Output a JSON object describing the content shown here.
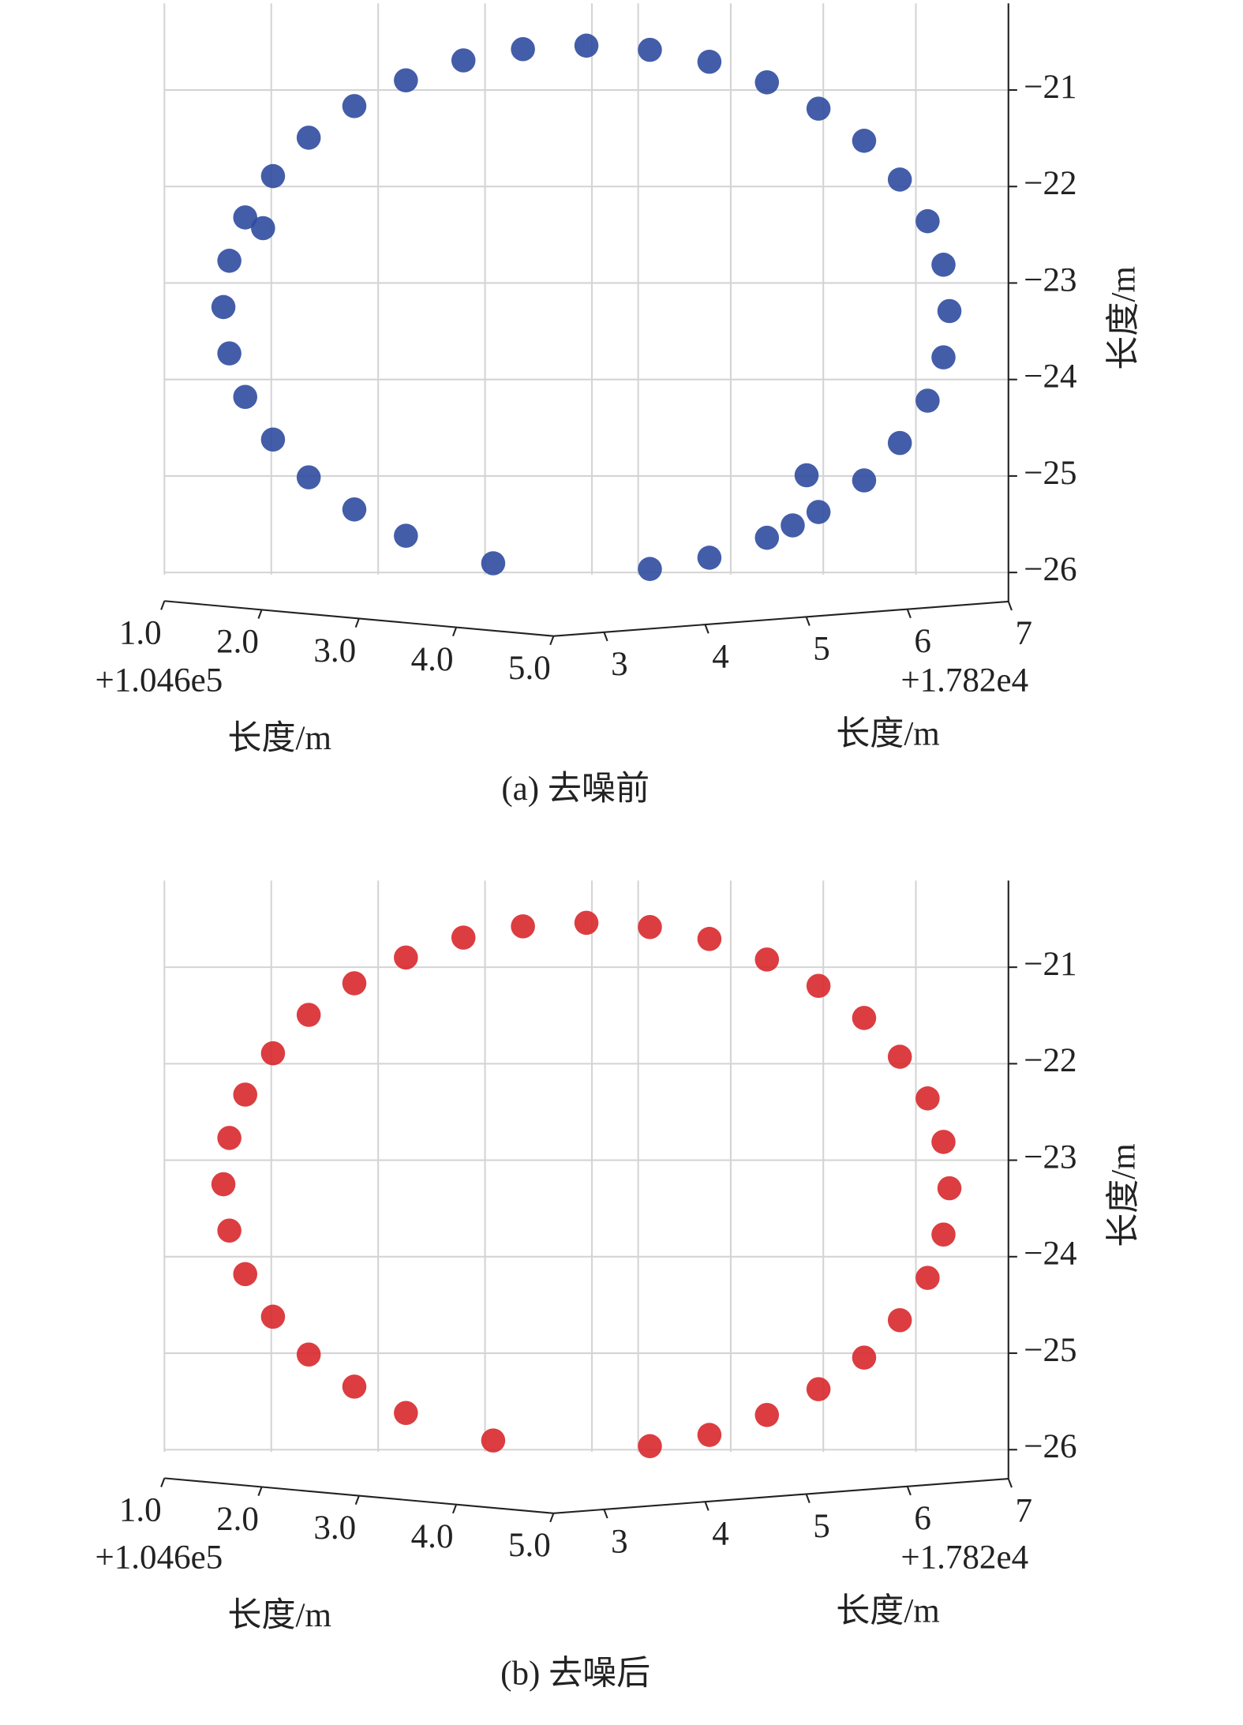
{
  "chart_data": [
    {
      "type": "scatter3d",
      "caption": "(a) 去噪前",
      "color": "#2f4ba0",
      "grid": true,
      "xlabel": "长度/m",
      "ylabel": "长度/m",
      "zlabel": "长度/m",
      "x_offset": "+1.046e5",
      "y_offset": "+1.782e4",
      "xlim": [
        1,
        5
      ],
      "ylim": [
        2.5,
        7
      ],
      "zlim": [
        -26.3,
        -20.1
      ],
      "xticks": [
        {
          "value": 1,
          "label": "1.0"
        },
        {
          "value": 2,
          "label": "2.0"
        },
        {
          "value": 3,
          "label": "3.0"
        },
        {
          "value": 4,
          "label": "4.0"
        },
        {
          "value": 5,
          "label": "5.0"
        }
      ],
      "yticks": [
        3,
        4,
        5,
        6,
        7
      ],
      "zticks": [
        {
          "value": -21,
          "label": "−21"
        },
        {
          "value": -22,
          "label": "−22"
        },
        {
          "value": -23,
          "label": "−23"
        },
        {
          "value": -24,
          "label": "−24"
        },
        {
          "value": -25,
          "label": "−25"
        },
        {
          "value": -26,
          "label": "−26"
        }
      ],
      "x": [
        4.83,
        4.8,
        4.72,
        4.58,
        4.4,
        4.17,
        3.91,
        3.62,
        3.32,
        3.0,
        2.68,
        2.38,
        2.09,
        1.83,
        1.6,
        1.42,
        1.28,
        1.2,
        1.17,
        1.2,
        1.28,
        1.42,
        1.6,
        1.83,
        2.09,
        2.53,
        3.32,
        3.62,
        3.91,
        4.17,
        4.4,
        4.58,
        4.72,
        4.8,
        1.37,
        4.11,
        4.04
      ],
      "y": [
        6.58,
        6.55,
        6.47,
        6.33,
        6.15,
        5.92,
        5.66,
        5.37,
        5.07,
        4.75,
        4.43,
        4.13,
        3.84,
        3.58,
        3.35,
        3.17,
        3.03,
        2.95,
        2.92,
        2.95,
        3.03,
        3.17,
        3.35,
        3.58,
        3.84,
        4.28,
        5.07,
        5.37,
        5.66,
        5.92,
        6.15,
        6.33,
        6.47,
        6.55,
        3.12,
        5.86,
        5.79
      ],
      "z": [
        -23.27,
        -22.79,
        -22.34,
        -21.91,
        -21.51,
        -21.18,
        -20.91,
        -20.7,
        -20.58,
        -20.54,
        -20.58,
        -20.7,
        -20.91,
        -21.18,
        -21.51,
        -21.91,
        -22.34,
        -22.79,
        -23.27,
        -23.75,
        -24.2,
        -24.64,
        -25.03,
        -25.36,
        -25.63,
        -25.91,
        -25.96,
        -25.84,
        -25.63,
        -25.36,
        -25.03,
        -24.64,
        -24.2,
        -23.75,
        -22.45,
        -24.98,
        -25.5
      ]
    },
    {
      "type": "scatter3d",
      "caption": "(b) 去噪后",
      "color": "#d8282c",
      "grid": true,
      "xlabel": "长度/m",
      "ylabel": "长度/m",
      "zlabel": "长度/m",
      "x_offset": "+1.046e5",
      "y_offset": "+1.782e4",
      "xlim": [
        1,
        5
      ],
      "ylim": [
        2.5,
        7
      ],
      "zlim": [
        -26.3,
        -20.1
      ],
      "xticks": [
        {
          "value": 1,
          "label": "1.0"
        },
        {
          "value": 2,
          "label": "2.0"
        },
        {
          "value": 3,
          "label": "3.0"
        },
        {
          "value": 4,
          "label": "4.0"
        },
        {
          "value": 5,
          "label": "5.0"
        }
      ],
      "yticks": [
        3,
        4,
        5,
        6,
        7
      ],
      "zticks": [
        {
          "value": -21,
          "label": "−21"
        },
        {
          "value": -22,
          "label": "−22"
        },
        {
          "value": -23,
          "label": "−23"
        },
        {
          "value": -24,
          "label": "−24"
        },
        {
          "value": -25,
          "label": "−25"
        },
        {
          "value": -26,
          "label": "−26"
        }
      ],
      "x": [
        4.83,
        4.8,
        4.72,
        4.58,
        4.4,
        4.17,
        3.91,
        3.62,
        3.32,
        3.0,
        2.68,
        2.38,
        2.09,
        1.83,
        1.6,
        1.42,
        1.28,
        1.2,
        1.17,
        1.2,
        1.28,
        1.42,
        1.6,
        1.83,
        2.09,
        2.53,
        3.32,
        3.62,
        3.91,
        4.17,
        4.4,
        4.58,
        4.72,
        4.8
      ],
      "y": [
        6.58,
        6.55,
        6.47,
        6.33,
        6.15,
        5.92,
        5.66,
        5.37,
        5.07,
        4.75,
        4.43,
        4.13,
        3.84,
        3.58,
        3.35,
        3.17,
        3.03,
        2.95,
        2.92,
        2.95,
        3.03,
        3.17,
        3.35,
        3.58,
        3.84,
        4.28,
        5.07,
        5.37,
        5.66,
        5.92,
        6.15,
        6.33,
        6.47,
        6.55
      ],
      "z": [
        -23.27,
        -22.79,
        -22.34,
        -21.91,
        -21.51,
        -21.18,
        -20.91,
        -20.7,
        -20.58,
        -20.54,
        -20.58,
        -20.7,
        -20.91,
        -21.18,
        -21.51,
        -21.91,
        -22.34,
        -22.79,
        -23.27,
        -23.75,
        -24.2,
        -24.64,
        -25.03,
        -25.36,
        -25.63,
        -25.91,
        -25.96,
        -25.84,
        -25.63,
        -25.36,
        -25.03,
        -24.64,
        -24.2,
        -23.75
      ]
    }
  ]
}
